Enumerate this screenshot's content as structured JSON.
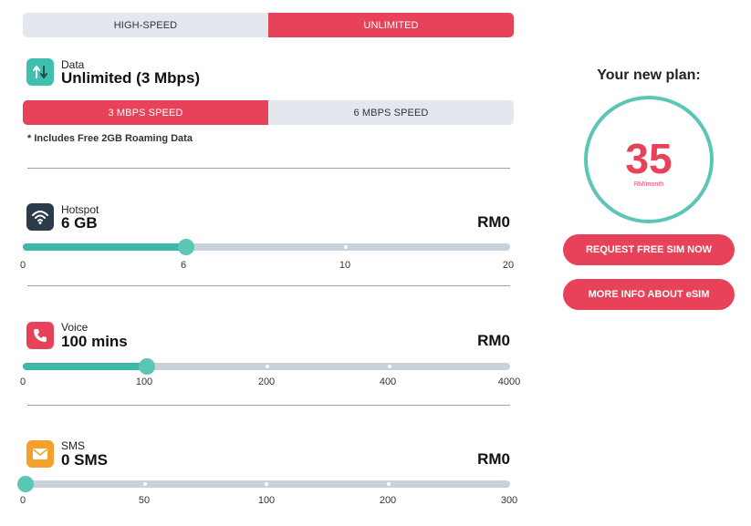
{
  "plan_type_tabs": [
    "HIGH-SPEED",
    "UNLIMITED"
  ],
  "data": {
    "label": "Data",
    "value": "Unlimited (3 Mbps)",
    "speed_tabs": [
      "3 MBPS SPEED",
      "6 MBPS SPEED"
    ],
    "note": "* Includes Free 2GB Roaming Data"
  },
  "hotspot": {
    "label": "Hotspot",
    "value": "6 GB",
    "price": "RM0",
    "ticks": [
      "0",
      "6",
      "10",
      "20"
    ],
    "level": 0.3
  },
  "voice": {
    "label": "Voice",
    "value": "100 mins",
    "price": "RM0",
    "ticks": [
      "0",
      "100",
      "200",
      "400",
      "4000"
    ],
    "level": 0.25
  },
  "sms": {
    "label": "SMS",
    "value": "0 SMS",
    "price": "RM0",
    "ticks": [
      "0",
      "50",
      "100",
      "200",
      "300"
    ],
    "level": 0
  },
  "plan": {
    "title": "Your new plan:",
    "price": "35",
    "unit": "RM/month"
  },
  "buttons": {
    "request_sim": "REQUEST FREE SIM NOW",
    "esim_info": "MORE INFO ABOUT eSIM"
  },
  "colors": {
    "accent": "#e8425a",
    "teal": "#3bb8a8",
    "tab_inactive": "#e3e8ef",
    "track": "#c9d2da"
  },
  "icons": {
    "data": "data-arrows-icon",
    "hotspot": "wifi-icon",
    "voice": "phone-icon",
    "sms": "envelope-icon"
  }
}
